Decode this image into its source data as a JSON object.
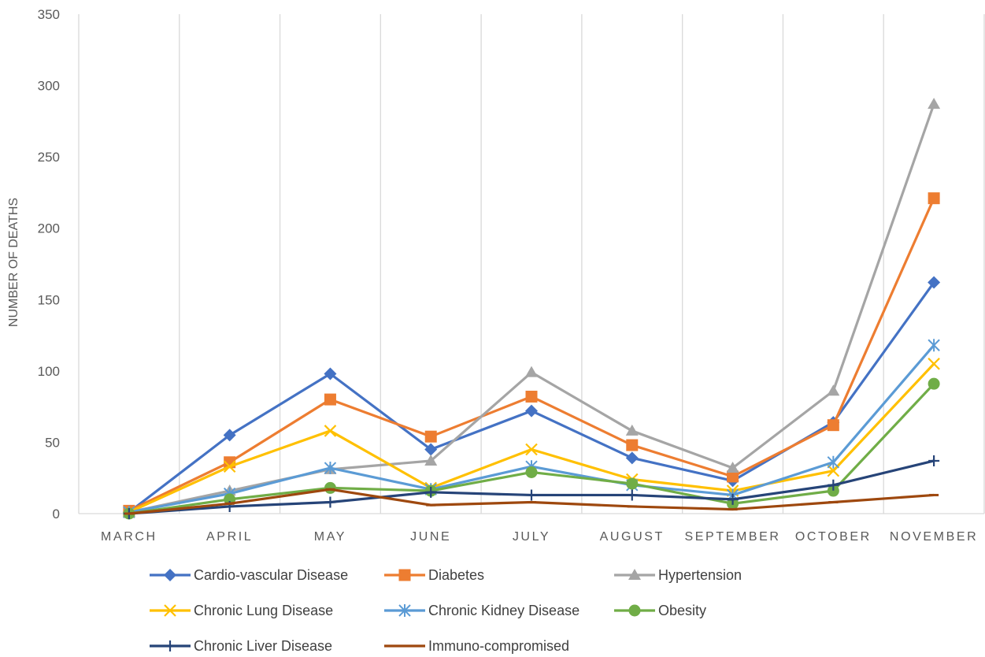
{
  "chart_data": {
    "type": "line",
    "ylabel": "NUMBER OF DEATHS",
    "xlabel": "",
    "ylim": [
      0,
      350
    ],
    "yticks": [
      0,
      50,
      100,
      150,
      200,
      250,
      300,
      350
    ],
    "categories": [
      "MARCH",
      "APRIL",
      "MAY",
      "JUNE",
      "JULY",
      "AUGUST",
      "SEPTEMBER",
      "OCTOBER",
      "NOVEMBER"
    ],
    "grid": "vertical",
    "legend_position": "bottom",
    "series": [
      {
        "name": "Cardio-vascular Disease",
        "color": "#4472C4",
        "marker": "diamond",
        "values": [
          1,
          55,
          98,
          45,
          72,
          39,
          23,
          64,
          162
        ]
      },
      {
        "name": "Diabetes",
        "color": "#ED7D31",
        "marker": "square",
        "values": [
          2,
          36,
          80,
          54,
          82,
          48,
          26,
          62,
          221
        ]
      },
      {
        "name": "Hypertension",
        "color": "#A5A5A5",
        "marker": "triangle",
        "values": [
          1,
          16,
          31,
          37,
          99,
          58,
          32,
          86,
          287
        ]
      },
      {
        "name": "Chronic Lung Disease",
        "color": "#FFC000",
        "marker": "x",
        "values": [
          1,
          33,
          58,
          18,
          45,
          24,
          16,
          30,
          105
        ]
      },
      {
        "name": "Chronic Kidney Disease",
        "color": "#5B9BD5",
        "marker": "star",
        "values": [
          1,
          14,
          32,
          17,
          33,
          20,
          13,
          36,
          118
        ]
      },
      {
        "name": "Obesity",
        "color": "#70AD47",
        "marker": "circle",
        "values": [
          0,
          10,
          18,
          16,
          29,
          21,
          7,
          16,
          91
        ]
      },
      {
        "name": "Chronic Liver Disease",
        "color": "#264478",
        "marker": "plus",
        "values": [
          0,
          5,
          8,
          15,
          13,
          13,
          10,
          20,
          37
        ]
      },
      {
        "name": "Immuno-compromised",
        "color": "#9E480E",
        "marker": "dash",
        "values": [
          0,
          7,
          17,
          6,
          8,
          5,
          3,
          8,
          13
        ]
      }
    ]
  }
}
